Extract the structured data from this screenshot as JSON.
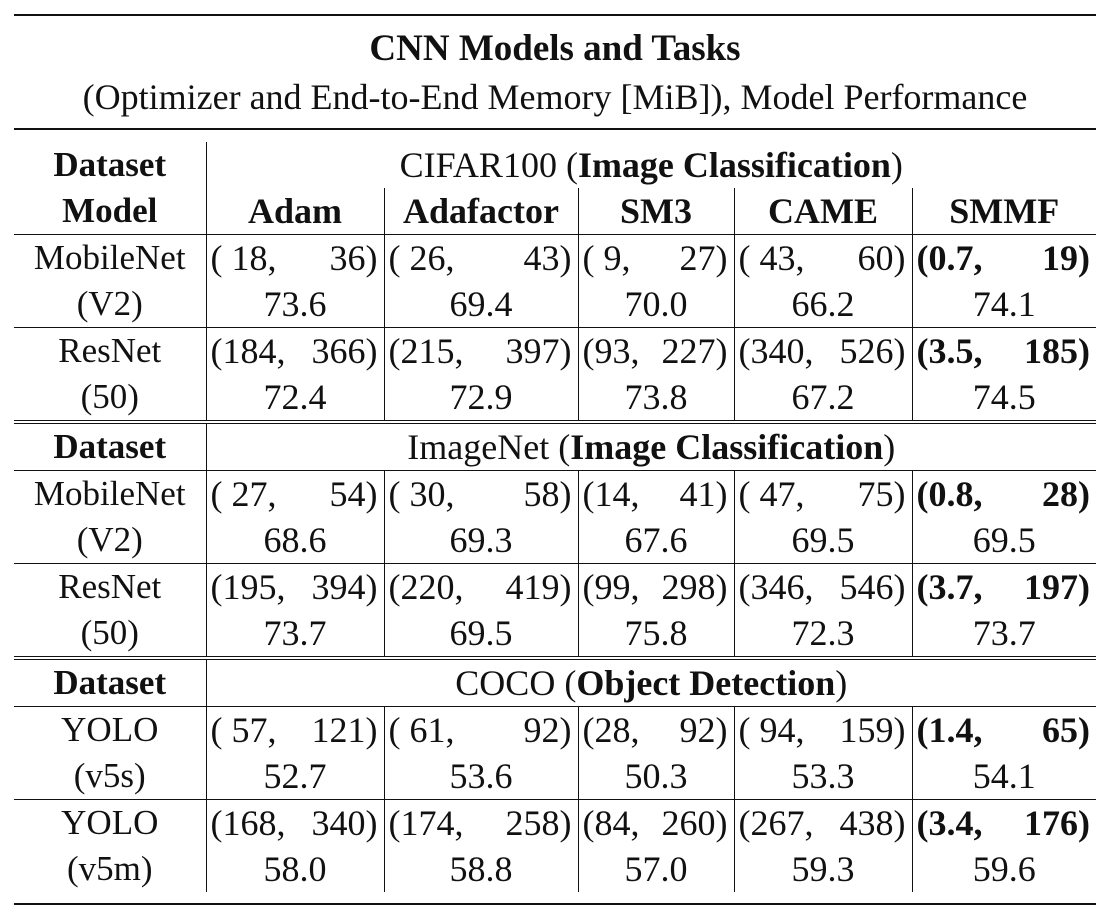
{
  "title": "CNN Models and Tasks",
  "subtitle": "(Optimizer and End-to-End Memory [MiB]), Model Performance",
  "labels": {
    "dataset": "Dataset",
    "model": "Model"
  },
  "optimizers": [
    "Adam",
    "Adafactor",
    "SM3",
    "CAME",
    "SMMF"
  ],
  "sections": [
    {
      "dataset": "CIFAR100",
      "task": "Image Classification",
      "rows": [
        {
          "model": "MobileNet",
          "variant": "(V2)",
          "cells": [
            {
              "mem_open": "( 18,",
              "mem_close": "36)",
              "perf": "73.6"
            },
            {
              "mem_open": "( 26,",
              "mem_close": "43)",
              "perf": "69.4"
            },
            {
              "mem_open": "( 9,",
              "mem_close": "27)",
              "perf": "70.0"
            },
            {
              "mem_open": "( 43,",
              "mem_close": "60)",
              "perf": "66.2"
            },
            {
              "mem_open": "(0.7,",
              "mem_close": "19)",
              "perf": "74.1"
            }
          ]
        },
        {
          "model": "ResNet",
          "variant": "(50)",
          "cells": [
            {
              "mem_open": "(184,",
              "mem_close": "366)",
              "perf": "72.4"
            },
            {
              "mem_open": "(215,",
              "mem_close": "397)",
              "perf": "72.9"
            },
            {
              "mem_open": "(93,",
              "mem_close": "227)",
              "perf": "73.8"
            },
            {
              "mem_open": "(340,",
              "mem_close": "526)",
              "perf": "67.2"
            },
            {
              "mem_open": "(3.5,",
              "mem_close": "185)",
              "perf": "74.5"
            }
          ]
        }
      ]
    },
    {
      "dataset": "ImageNet",
      "task": "Image Classification",
      "rows": [
        {
          "model": "MobileNet",
          "variant": "(V2)",
          "cells": [
            {
              "mem_open": "( 27,",
              "mem_close": "54)",
              "perf": "68.6"
            },
            {
              "mem_open": "( 30,",
              "mem_close": "58)",
              "perf": "69.3"
            },
            {
              "mem_open": "(14,",
              "mem_close": "41)",
              "perf": "67.6"
            },
            {
              "mem_open": "( 47,",
              "mem_close": "75)",
              "perf": "69.5"
            },
            {
              "mem_open": "(0.8,",
              "mem_close": "28)",
              "perf": "69.5"
            }
          ]
        },
        {
          "model": "ResNet",
          "variant": "(50)",
          "cells": [
            {
              "mem_open": "(195,",
              "mem_close": "394)",
              "perf": "73.7"
            },
            {
              "mem_open": "(220,",
              "mem_close": "419)",
              "perf": "69.5"
            },
            {
              "mem_open": "(99,",
              "mem_close": "298)",
              "perf": "75.8"
            },
            {
              "mem_open": "(346,",
              "mem_close": "546)",
              "perf": "72.3"
            },
            {
              "mem_open": "(3.7,",
              "mem_close": "197)",
              "perf": "73.7"
            }
          ]
        }
      ]
    },
    {
      "dataset": "COCO",
      "task": "Object Detection",
      "rows": [
        {
          "model": "YOLO",
          "variant": "(v5s)",
          "cells": [
            {
              "mem_open": "( 57,",
              "mem_close": "121)",
              "perf": "52.7"
            },
            {
              "mem_open": "( 61,",
              "mem_close": "92)",
              "perf": "53.6"
            },
            {
              "mem_open": "(28,",
              "mem_close": "92)",
              "perf": "50.3"
            },
            {
              "mem_open": "( 94,",
              "mem_close": "159)",
              "perf": "53.3"
            },
            {
              "mem_open": "(1.4,",
              "mem_close": "65)",
              "perf": "54.1"
            }
          ]
        },
        {
          "model": "YOLO",
          "variant": "(v5m)",
          "cells": [
            {
              "mem_open": "(168,",
              "mem_close": "340)",
              "perf": "58.0"
            },
            {
              "mem_open": "(174,",
              "mem_close": "258)",
              "perf": "58.8"
            },
            {
              "mem_open": "(84,",
              "mem_close": "260)",
              "perf": "57.0"
            },
            {
              "mem_open": "(267,",
              "mem_close": "438)",
              "perf": "59.3"
            },
            {
              "mem_open": "(3.4,",
              "mem_close": "176)",
              "perf": "59.6"
            }
          ]
        }
      ]
    }
  ]
}
